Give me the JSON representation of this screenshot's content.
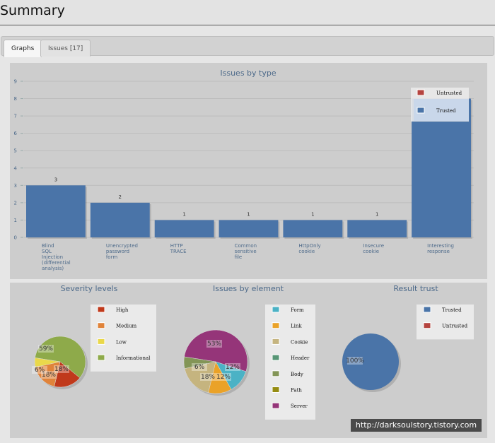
{
  "header": {
    "title": "Summary"
  },
  "tabs": [
    {
      "label": "Graphs",
      "active": true
    },
    {
      "label": "Issues [17]",
      "active": false
    }
  ],
  "colors": {
    "panel_bg": "#cdcdcd",
    "bar": "#4a74a8",
    "untrusted": "#b5443f",
    "trusted": "#4a74a8"
  },
  "watermark": "http://darksoulstory.tistory.com",
  "chart_data": [
    {
      "type": "bar",
      "title": "Issues by type",
      "categories": [
        [
          "Blind",
          "SQL",
          "Injection",
          "(differential",
          "analysis)"
        ],
        [
          "Unencrypted",
          "password",
          "form"
        ],
        [
          "HTTP",
          "TRACE"
        ],
        [
          "Common",
          "sensitive",
          "file"
        ],
        [
          "HttpOnly",
          "cookie"
        ],
        [
          "Insecure",
          "cookie"
        ],
        [
          "Interesting",
          "response"
        ]
      ],
      "series": [
        {
          "name": "Untrusted",
          "values": [
            0,
            0,
            0,
            0,
            0,
            0,
            0
          ]
        },
        {
          "name": "Trusted",
          "values": [
            3,
            2,
            1,
            1,
            1,
            1,
            8
          ]
        }
      ],
      "data_labels": [
        "3",
        "2",
        "1",
        "1",
        "1",
        "1",
        ""
      ],
      "ylim": [
        0,
        9
      ],
      "yticks": [
        0,
        1,
        2,
        3,
        4,
        5,
        6,
        7,
        8,
        9
      ],
      "grid": true,
      "legend_position": "top-right",
      "legend": [
        "Untrusted",
        "Trusted"
      ]
    },
    {
      "type": "pie",
      "title": "Severity levels",
      "labels": [
        "High",
        "Medium",
        "Low",
        "Informational"
      ],
      "values": [
        18,
        18,
        6,
        59
      ],
      "percent_labels": [
        "18%",
        "18%",
        "6%",
        "59%"
      ],
      "colors": [
        "#c0391b",
        "#e0833a",
        "#ead84a",
        "#8eaa4a"
      ],
      "legend_position": "right"
    },
    {
      "type": "pie",
      "title": "Issues by element",
      "labels": [
        "Form",
        "Link",
        "Cookie",
        "Header",
        "Body",
        "Path",
        "Server"
      ],
      "values": [
        12,
        12,
        18,
        0,
        6,
        0,
        53
      ],
      "percent_labels": [
        "12%",
        "12%",
        "18%",
        "",
        "6%",
        "",
        "53%"
      ],
      "colors": [
        "#4bb2c5",
        "#eaa228",
        "#c5b47f",
        "#579575",
        "#839557",
        "#958c12",
        "#953579"
      ],
      "legend_position": "right"
    },
    {
      "type": "pie",
      "title": "Result trust",
      "labels": [
        "Trusted",
        "Untrusted"
      ],
      "values": [
        100,
        0
      ],
      "percent_labels": [
        "100%",
        ""
      ],
      "colors": [
        "#4a74a8",
        "#b5443f"
      ],
      "legend_position": "top-right"
    }
  ]
}
